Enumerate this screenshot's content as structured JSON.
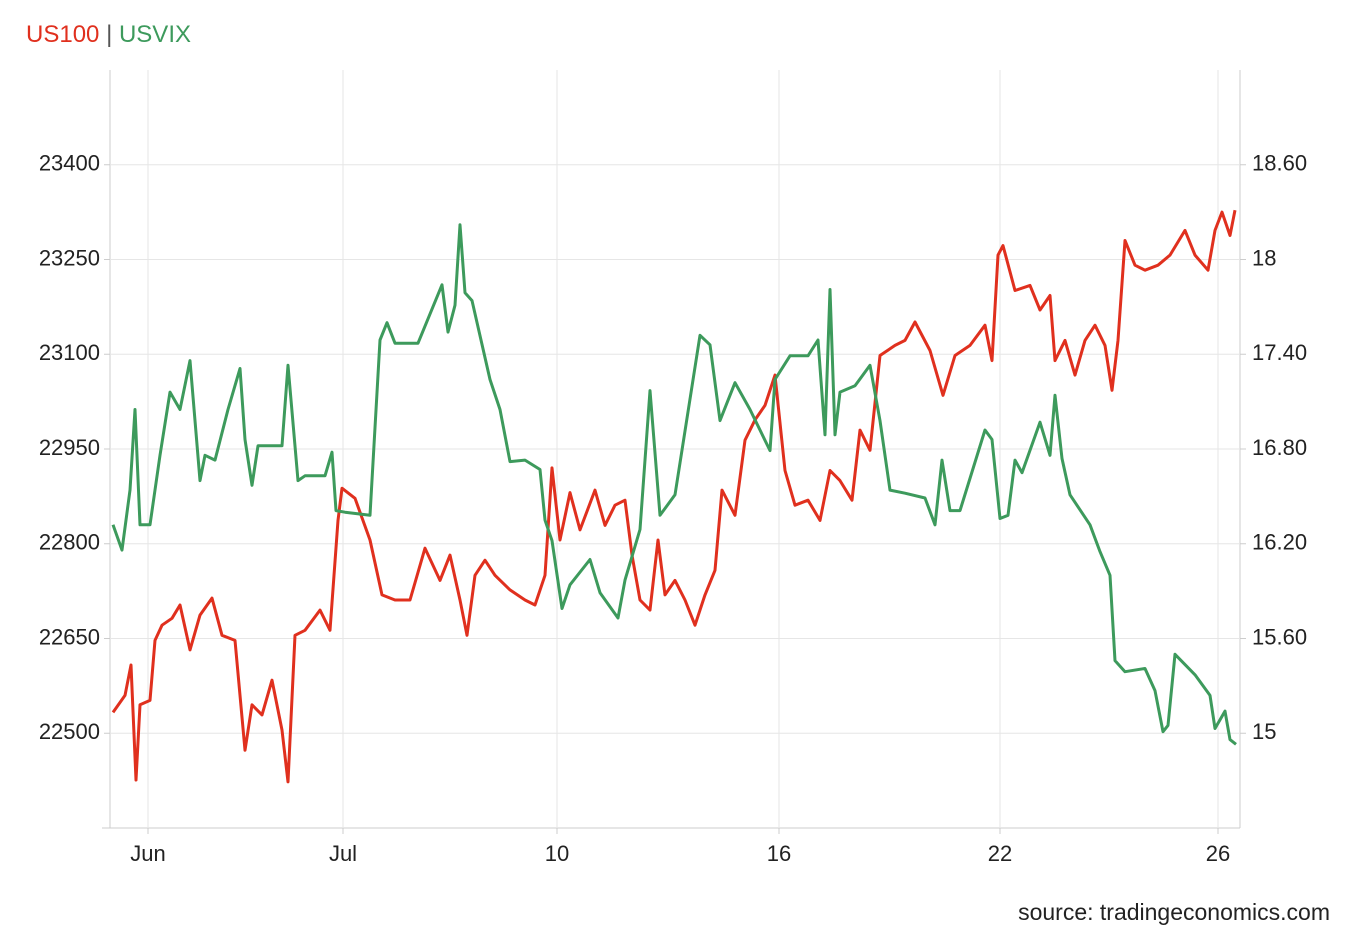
{
  "chart_data": {
    "type": "line",
    "legend_separator": "|",
    "source": "source: tradingeconomics.com",
    "xlim": [
      0,
      113
    ],
    "xticks": [
      {
        "value": 3.8,
        "label": "Jun"
      },
      {
        "value": 23.3,
        "label": "Jul"
      },
      {
        "value": 44.7,
        "label": "10"
      },
      {
        "value": 66.9,
        "label": "16"
      },
      {
        "value": 89,
        "label": "22"
      },
      {
        "value": 110.8,
        "label": "26"
      }
    ],
    "ylim": [
      22350,
      23550
    ],
    "yticks": [
      22500,
      22650,
      22800,
      22950,
      23100,
      23250,
      23400
    ],
    "y2lim": [
      14.4,
      19.2
    ],
    "y2ticks": [
      15,
      {
        "value": 15.6,
        "label": "15.60"
      },
      {
        "value": 16.2,
        "label": "16.20"
      },
      {
        "value": 16.8,
        "label": "16.80"
      },
      {
        "value": 17.4,
        "label": "17.40"
      },
      18,
      {
        "value": 18.6,
        "label": "18.60"
      }
    ],
    "grid": true,
    "series": [
      {
        "name": "US100",
        "color": "#e0301e",
        "x": [
          0.3,
          1.5,
          2.1,
          2.6,
          3,
          4,
          4.5,
          5.2,
          6.2,
          7,
          8,
          9,
          10.2,
          11.2,
          12.5,
          13.5,
          14.2,
          15.2,
          16.2,
          17.2,
          17.8,
          18.5,
          19.5,
          21,
          22,
          22.8,
          23.2,
          24.5,
          26,
          27.2,
          28.5,
          30,
          31.5,
          33,
          34,
          35,
          35.7,
          36.5,
          37.5,
          38.5,
          40,
          41.5,
          42.5,
          43.5,
          44.2,
          45,
          46,
          47,
          48.5,
          49.5,
          50.5,
          51.5,
          52.2,
          53,
          54,
          54.8,
          55.5,
          56.5,
          57.5,
          58.5,
          59.5,
          60.5,
          61.2,
          62.5,
          63.5,
          64.5,
          65.5,
          66.5,
          67.5,
          68.5,
          69.8,
          71,
          72,
          73,
          74.2,
          75,
          76,
          77,
          78.5,
          79.5,
          80.5,
          82,
          83.3,
          84.5,
          86,
          87.5,
          88.2,
          88.8,
          89.3,
          90.5,
          92,
          93,
          94,
          94.5,
          95.5,
          96.5,
          97.5,
          98.5,
          99.5,
          100.2,
          100.8,
          101.5,
          102.5,
          103.5,
          104.8,
          106,
          107.5,
          108.5,
          109.8,
          110.5,
          111.2,
          112,
          112.5
        ],
        "values": [
          22533,
          22560,
          22608,
          22426,
          22545,
          22552,
          22647,
          22671,
          22682,
          22703,
          22632,
          22687,
          22714,
          22655,
          22647,
          22473,
          22545,
          22529,
          22584,
          22505,
          22423,
          22655,
          22663,
          22695,
          22663,
          22837,
          22888,
          22872,
          22806,
          22719,
          22711,
          22711,
          22793,
          22742,
          22782,
          22711,
          22655,
          22750,
          22774,
          22750,
          22727,
          22711,
          22703,
          22750,
          22920,
          22806,
          22881,
          22822,
          22885,
          22829,
          22861,
          22869,
          22782,
          22711,
          22695,
          22806,
          22719,
          22742,
          22711,
          22671,
          22719,
          22758,
          22885,
          22845,
          22964,
          22996,
          23019,
          23067,
          22916,
          22861,
          22869,
          22837,
          22916,
          22900,
          22869,
          22980,
          22948,
          23098,
          23114,
          23122,
          23151,
          23106,
          23035,
          23098,
          23114,
          23146,
          23090,
          23257,
          23272,
          23201,
          23209,
          23170,
          23193,
          23090,
          23122,
          23067,
          23122,
          23146,
          23114,
          23043,
          23122,
          23280,
          23241,
          23233,
          23241,
          23257,
          23296,
          23257,
          23233,
          23296,
          23325,
          23288,
          23328
        ]
      },
      {
        "name": "USVIX",
        "color": "#3d9a5c",
        "axis": "y2",
        "x": [
          0.3,
          1.2,
          2,
          2.5,
          3,
          4,
          5,
          6,
          7,
          8,
          9,
          9.5,
          10.5,
          11.8,
          13,
          13.5,
          14.2,
          14.8,
          17.2,
          17.8,
          18.8,
          19.5,
          21.5,
          22.2,
          22.6,
          23.5,
          26,
          27,
          27.7,
          28.5,
          30.8,
          33.2,
          33.8,
          34.5,
          35,
          35.5,
          36.2,
          38,
          39,
          40,
          41.5,
          43,
          43.5,
          44.2,
          45.2,
          46,
          48,
          49,
          50.8,
          51.5,
          53,
          54,
          55,
          56.5,
          59,
          60,
          61,
          62.5,
          64,
          66,
          66.5,
          68,
          69.8,
          70.8,
          71.5,
          72,
          72.5,
          73,
          74.5,
          76,
          77,
          78,
          79.5,
          81.5,
          82.5,
          83.2,
          84,
          85,
          87.5,
          88.2,
          89,
          89.8,
          90.5,
          91.2,
          93,
          94,
          94.5,
          95.2,
          96,
          98,
          99,
          100,
          100.5,
          101.5,
          103.5,
          104.5,
          105.3,
          105.8,
          106.5,
          108.5,
          110,
          110.5,
          111.5,
          112,
          112.6
        ],
        "values": [
          16.32,
          16.16,
          16.54,
          17.05,
          16.32,
          16.32,
          16.76,
          17.16,
          17.05,
          17.36,
          16.6,
          16.76,
          16.73,
          17.05,
          17.31,
          16.86,
          16.57,
          16.82,
          16.82,
          17.33,
          16.6,
          16.63,
          16.63,
          16.78,
          16.41,
          16.4,
          16.38,
          17.49,
          17.6,
          17.47,
          17.47,
          17.84,
          17.54,
          17.71,
          18.22,
          17.79,
          17.74,
          17.24,
          17.05,
          16.72,
          16.73,
          16.67,
          16.35,
          16.22,
          15.79,
          15.94,
          16.1,
          15.89,
          15.73,
          15.97,
          16.29,
          17.17,
          16.38,
          16.51,
          17.52,
          17.46,
          16.98,
          17.22,
          17.05,
          16.79,
          17.24,
          17.39,
          17.39,
          17.49,
          16.89,
          17.81,
          16.89,
          17.16,
          17.2,
          17.33,
          16.98,
          16.54,
          16.52,
          16.49,
          16.32,
          16.73,
          16.41,
          16.41,
          16.92,
          16.86,
          16.36,
          16.38,
          16.73,
          16.65,
          16.97,
          16.76,
          17.14,
          16.74,
          16.51,
          16.32,
          16.15,
          16,
          15.46,
          15.39,
          15.41,
          15.27,
          15.01,
          15.05,
          15.5,
          15.37,
          15.24,
          15.03,
          15.14,
          14.96,
          14.93
        ]
      }
    ]
  }
}
